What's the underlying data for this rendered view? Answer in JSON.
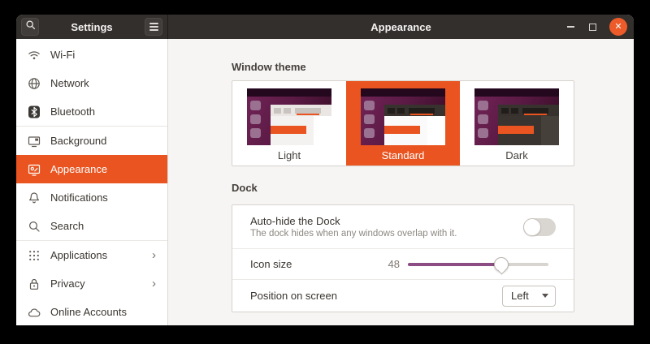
{
  "colors": {
    "accent": "#E95420",
    "slider_fill": "#8C4C84",
    "header_bg": "#322F2D",
    "close_button": "#EC5B29"
  },
  "titlebar": {
    "left_title": "Settings",
    "right_title": "Appearance",
    "search_icon": "search",
    "menu_icon": "hamburger",
    "controls": [
      "minimize",
      "maximize",
      "close"
    ]
  },
  "sidebar": {
    "items": [
      {
        "label": "Wi-Fi",
        "icon": "wifi"
      },
      {
        "label": "Network",
        "icon": "globe"
      },
      {
        "label": "Bluetooth",
        "icon": "bluetooth",
        "divider_after": true
      },
      {
        "label": "Background",
        "icon": "background"
      },
      {
        "label": "Appearance",
        "icon": "appearance",
        "selected": true
      },
      {
        "label": "Notifications",
        "icon": "bell"
      },
      {
        "label": "Search",
        "icon": "search",
        "divider_after": true
      },
      {
        "label": "Applications",
        "icon": "grid",
        "chevron": true
      },
      {
        "label": "Privacy",
        "icon": "lock",
        "chevron": true
      },
      {
        "label": "Online Accounts",
        "icon": "cloud"
      }
    ]
  },
  "main": {
    "window_theme": {
      "heading": "Window theme",
      "options": [
        {
          "label": "Light",
          "variant": "light",
          "selected": false
        },
        {
          "label": "Standard",
          "variant": "standard",
          "selected": true
        },
        {
          "label": "Dark",
          "variant": "dark",
          "selected": false
        }
      ]
    },
    "dock": {
      "heading": "Dock",
      "autohide": {
        "title": "Auto-hide the Dock",
        "subtitle": "The dock hides when any windows overlap with it.",
        "enabled": false
      },
      "icon_size": {
        "label": "Icon size",
        "value": "48",
        "slider_percent": 66.5
      },
      "position": {
        "label": "Position on screen",
        "value": "Left"
      }
    }
  }
}
